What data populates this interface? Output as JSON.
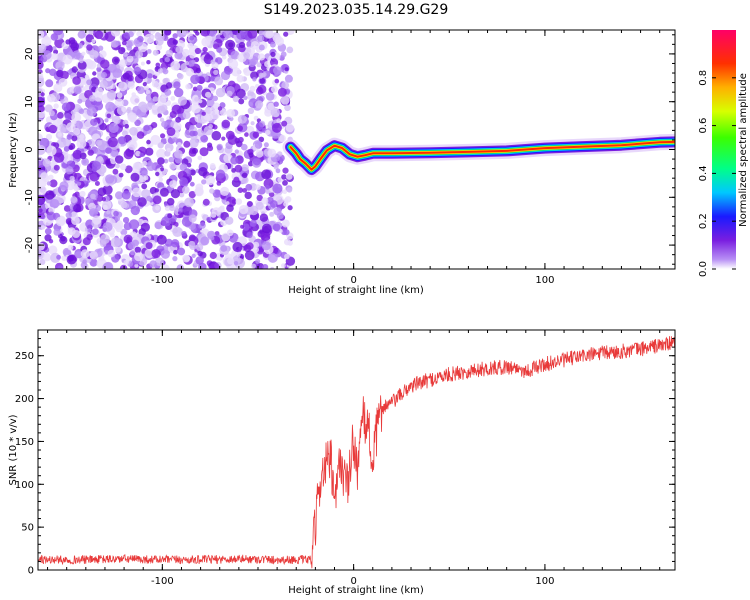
{
  "title": "S149.2023.035.14.29.G29",
  "colors": {
    "snr_line": "#e83a3a",
    "noise_purple": "#7a1ee0",
    "frame": "#000000"
  },
  "colorbar": {
    "label": "Normalized spectral amplitude",
    "ticks": [
      "0.0",
      "0.2",
      "0.4",
      "0.6",
      "0.8"
    ],
    "tick_values": [
      0.0,
      0.2,
      0.4,
      0.6,
      0.8
    ],
    "range": [
      0,
      1
    ],
    "colormap": "gist_rainbow"
  },
  "chart_data": [
    {
      "type": "heatmap",
      "title": "",
      "xlabel": "Height of straight line (km)",
      "ylabel": "Frequency (Hz)",
      "xlim": [
        -165,
        168
      ],
      "ylim": [
        -25,
        25
      ],
      "xticks": [
        -100,
        0,
        100
      ],
      "xtick_labels": [
        "-100",
        "0",
        "100"
      ],
      "yticks": [
        -20,
        -10,
        0,
        10,
        20
      ],
      "ytick_labels": [
        "-20",
        "-10",
        "0",
        "10",
        "20"
      ],
      "noise_region_x": [
        -165,
        -33
      ],
      "ridge": {
        "x": [
          -33,
          -30,
          -28,
          -25,
          -22,
          -20,
          -17,
          -14,
          -10,
          -6,
          -2,
          2,
          6,
          10,
          20,
          40,
          60,
          80,
          90,
          100,
          120,
          140,
          160,
          168
        ],
        "freq": [
          0.5,
          -0.8,
          -2.0,
          -3.0,
          -4.2,
          -3.5,
          -1.8,
          -0.2,
          0.8,
          0.3,
          -1.0,
          -1.5,
          -1.2,
          -0.8,
          -0.8,
          -0.7,
          -0.5,
          -0.3,
          0.0,
          0.3,
          0.6,
          0.9,
          1.5,
          1.6
        ]
      }
    },
    {
      "type": "line",
      "title": "",
      "xlabel": "Height of straight line (km)",
      "ylabel": "SNR (10 * v/v)",
      "xlim": [
        -165,
        168
      ],
      "ylim": [
        0,
        280
      ],
      "xticks": [
        -100,
        0,
        100
      ],
      "xtick_labels": [
        "-100",
        "0",
        "100"
      ],
      "yticks": [
        0,
        50,
        100,
        150,
        200,
        250
      ],
      "ytick_labels": [
        "0",
        "50",
        "100",
        "150",
        "200",
        "250"
      ],
      "series": [
        {
          "x": [
            -165,
            -140,
            -120,
            -100,
            -80,
            -60,
            -40,
            -22,
            -20,
            -18,
            -15,
            -12,
            -10,
            -7,
            -5,
            -3,
            -1,
            0,
            2,
            5,
            8,
            10,
            12,
            15,
            20,
            25,
            30,
            40,
            50,
            60,
            70,
            80,
            85,
            90,
            100,
            110,
            120,
            130,
            140,
            150,
            160,
            168
          ],
          "values": [
            12,
            12,
            13,
            12,
            12,
            13,
            12,
            12,
            50,
            100,
            120,
            130,
            70,
            130,
            110,
            95,
            140,
            150,
            120,
            175,
            165,
            120,
            160,
            190,
            195,
            205,
            215,
            222,
            228,
            232,
            235,
            237,
            236,
            232,
            240,
            245,
            250,
            253,
            255,
            258,
            262,
            265
          ]
        }
      ]
    }
  ]
}
